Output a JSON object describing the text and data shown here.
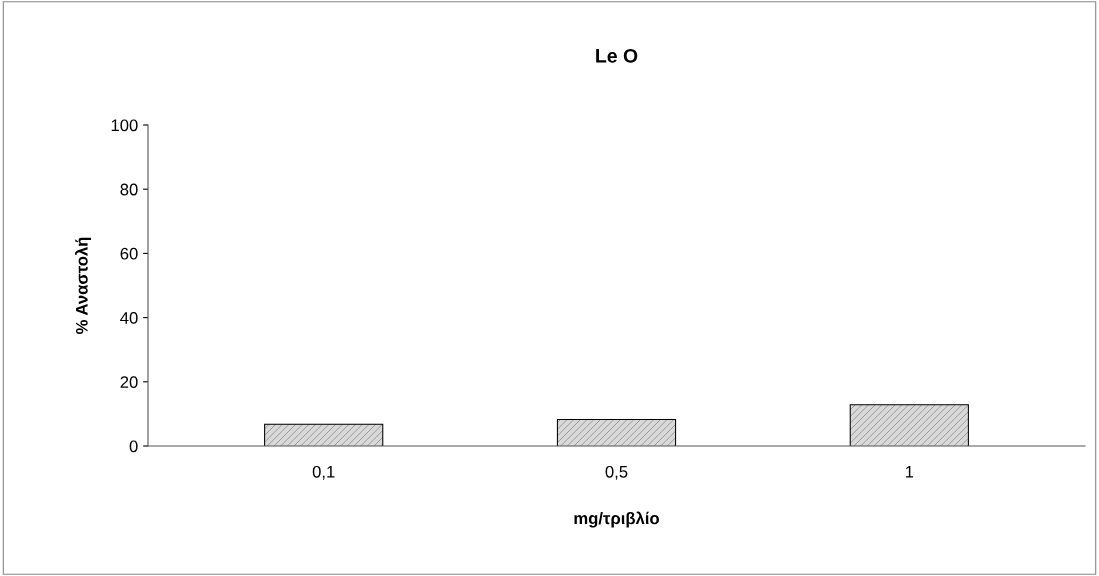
{
  "chart_data": {
    "type": "bar",
    "title": "Le O",
    "xlabel": "mg/τριβλίο",
    "ylabel": "% Αναστολή",
    "categories": [
      "0,1",
      "0,5",
      "1"
    ],
    "values": [
      6.6,
      8.1,
      12.7
    ],
    "color": "#d9d9d9",
    "ylim": [
      0,
      100
    ],
    "yticks": [
      0,
      20,
      40,
      60,
      80,
      100
    ],
    "grid": false,
    "legend": false
  }
}
